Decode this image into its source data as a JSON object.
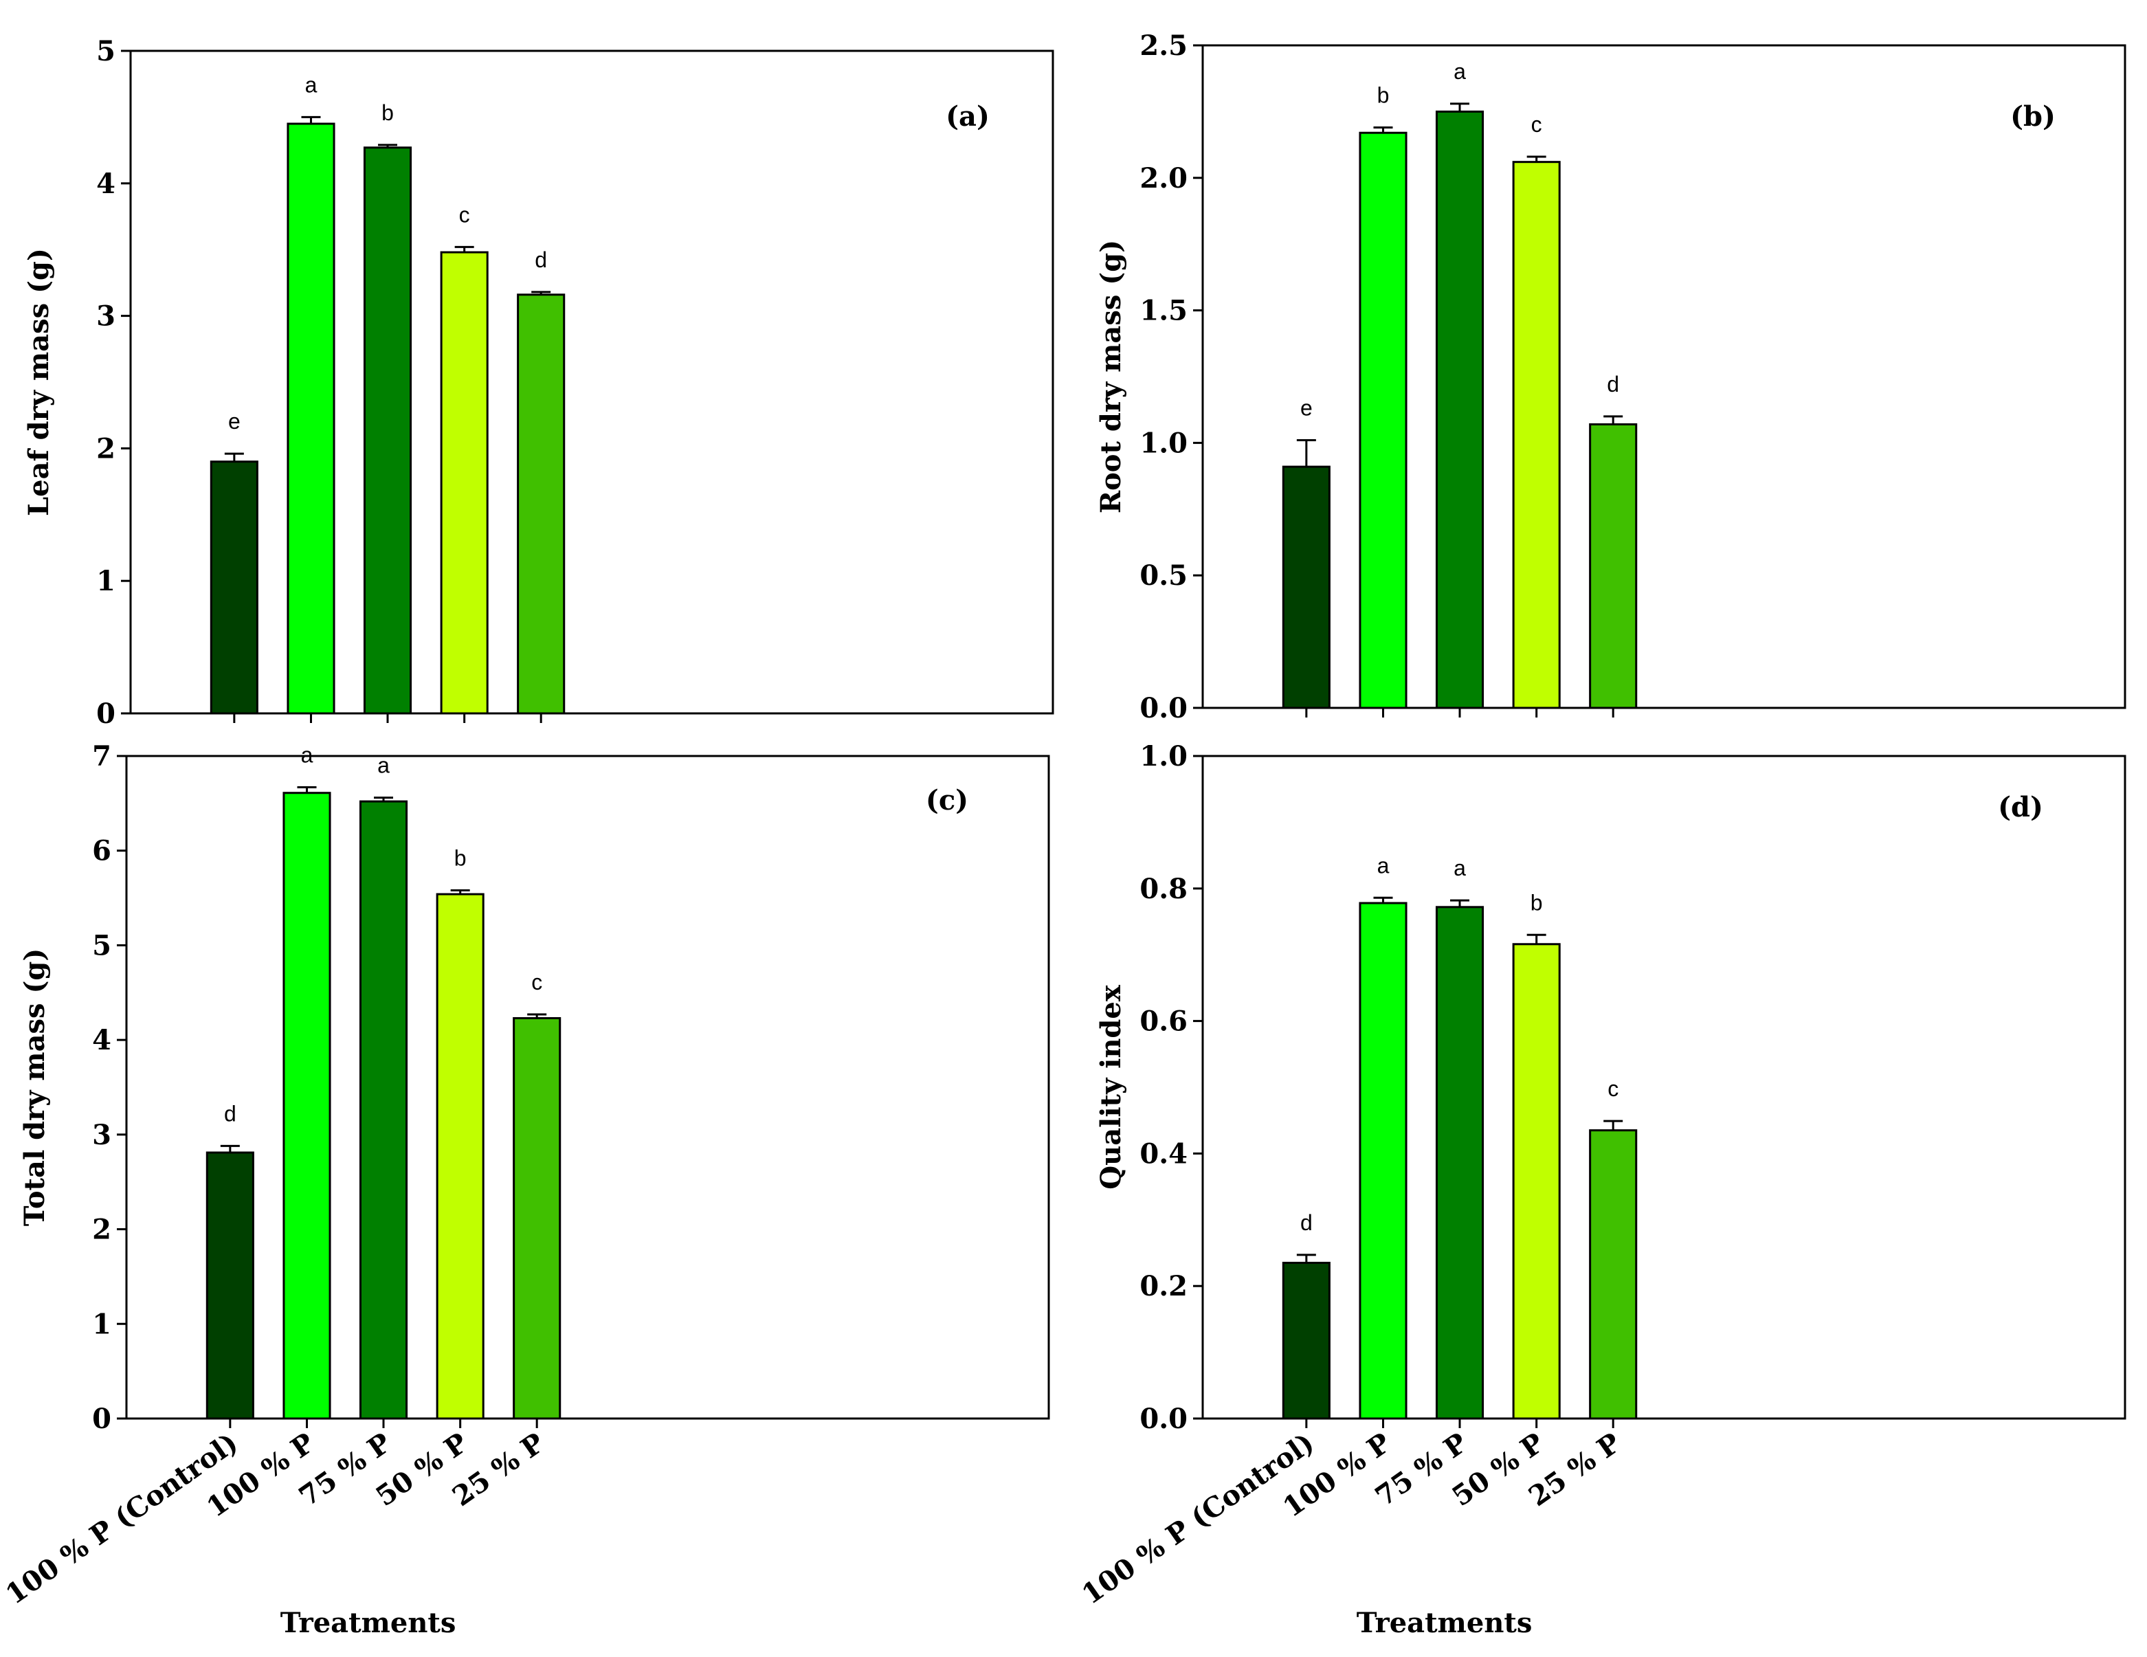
{
  "chart_data": [
    {
      "type": "bar",
      "panel_label": "(a)",
      "ylabel": "Leaf dry mass (g)",
      "xlabel": "",
      "ylim": [
        0,
        5
      ],
      "yticks": [
        0,
        1,
        2,
        3,
        4,
        5
      ],
      "categories": [
        "100 % P (Control)",
        "100 % P",
        "75 % P",
        "50 % P",
        "25 % P"
      ],
      "values": [
        1.9,
        4.45,
        4.27,
        3.48,
        3.16
      ],
      "errors": [
        0.06,
        0.05,
        0.02,
        0.04,
        0.02
      ],
      "letters": [
        "e",
        "a",
        "b",
        "c",
        "d"
      ],
      "show_category_labels": false
    },
    {
      "type": "bar",
      "panel_label": "(b)",
      "ylabel": "Root dry mass  (g)",
      "xlabel": "",
      "ylim": [
        0,
        2.5
      ],
      "yticks": [
        "0.0",
        "0.5",
        "1.0",
        "1.5",
        "2.0",
        "2.5"
      ],
      "categories": [
        "100 % P (Control)",
        "100 % P",
        "75 % P",
        "50 % P",
        "25 % P"
      ],
      "values": [
        0.91,
        2.17,
        2.25,
        2.06,
        1.07
      ],
      "errors": [
        0.1,
        0.02,
        0.03,
        0.02,
        0.03
      ],
      "letters": [
        "e",
        "b",
        "a",
        "c",
        "d"
      ],
      "show_category_labels": false
    },
    {
      "type": "bar",
      "panel_label": "(c)",
      "ylabel": "Total dry mass (g)",
      "xlabel": "Treatments",
      "ylim": [
        0,
        7
      ],
      "yticks": [
        0,
        1,
        2,
        3,
        4,
        5,
        6,
        7
      ],
      "categories": [
        "100 % P (Control)",
        "100 % P",
        "75 % P",
        "50 % P",
        "25 % P"
      ],
      "values": [
        2.81,
        6.61,
        6.52,
        5.54,
        4.23
      ],
      "errors": [
        0.07,
        0.06,
        0.04,
        0.04,
        0.04
      ],
      "letters": [
        "d",
        "a",
        "a",
        "b",
        "c"
      ],
      "show_category_labels": true
    },
    {
      "type": "bar",
      "panel_label": "(d)",
      "ylabel": "Quality index",
      "xlabel": "Treatments",
      "ylim": [
        0,
        1
      ],
      "yticks": [
        "0.0",
        "0.2",
        "0.4",
        "0.6",
        "0.8",
        "1.0"
      ],
      "categories": [
        "100 % P (Control)",
        "100 % P",
        "75 % P",
        "50 % P",
        "25 % P"
      ],
      "values": [
        0.235,
        0.778,
        0.772,
        0.716,
        0.435
      ],
      "errors": [
        0.012,
        0.008,
        0.01,
        0.014,
        0.014
      ],
      "letters": [
        "d",
        "a",
        "a",
        "b",
        "c"
      ],
      "show_category_labels": true
    }
  ],
  "colors": {
    "bars": [
      "#004000",
      "#00ff00",
      "#008000",
      "#c0ff00",
      "#40c000"
    ],
    "axis": "#000000",
    "background": "#ffffff"
  }
}
